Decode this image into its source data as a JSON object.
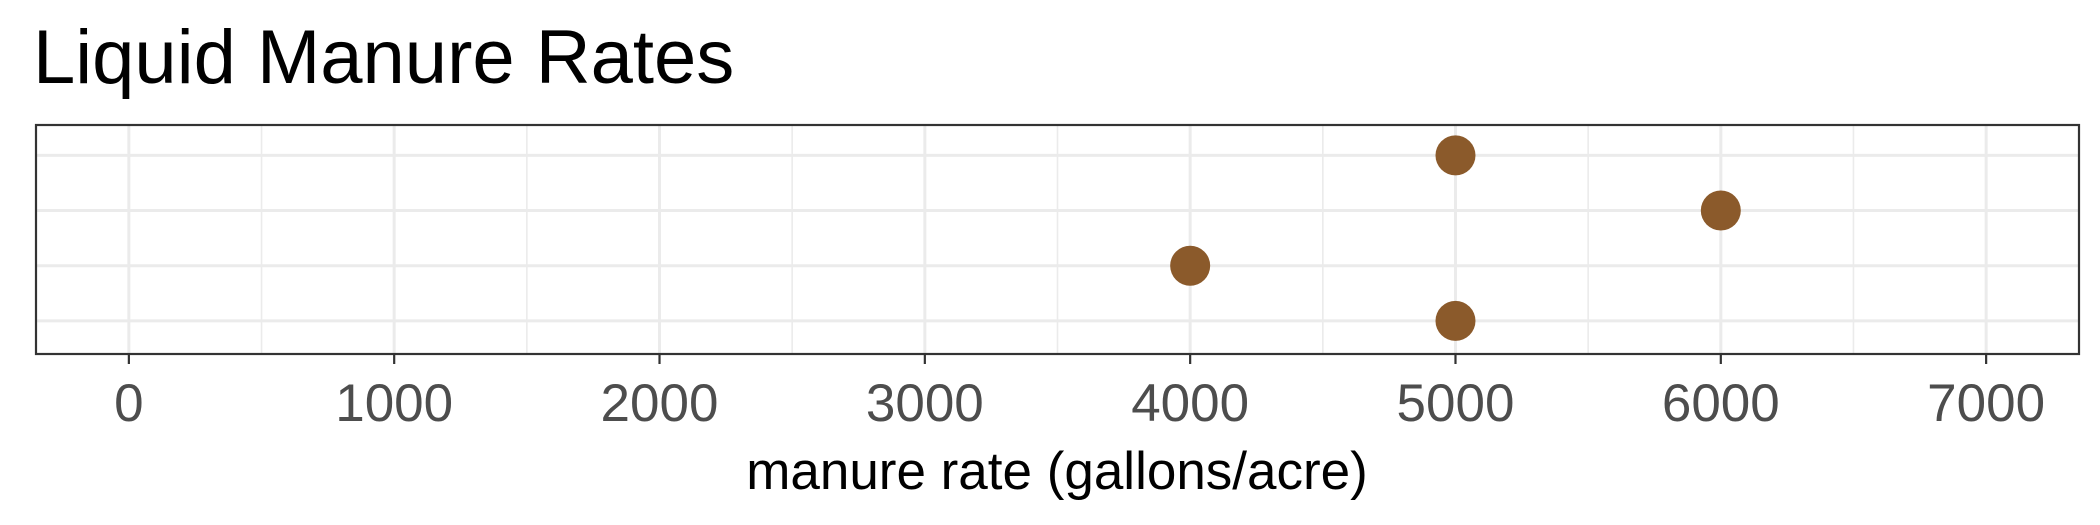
{
  "chart_data": {
    "type": "scatter",
    "title": "Liquid Manure Rates",
    "xlabel": "manure rate (gallons/acre)",
    "ylabel": "",
    "xlim": [
      -350,
      7350
    ],
    "ylim": [
      0.4,
      4.55
    ],
    "xticks": [
      0,
      1000,
      2000,
      3000,
      4000,
      5000,
      6000,
      7000
    ],
    "xtick_labels": [
      "0",
      "1000",
      "2000",
      "3000",
      "4000",
      "5000",
      "6000",
      "7000"
    ],
    "xminor": [
      500,
      1500,
      2500,
      3500,
      4500,
      5500,
      6500
    ],
    "y_gridlines": [
      1,
      2,
      3,
      4
    ],
    "grid": true,
    "legend": "none",
    "point_color": "#8B5A2B",
    "points": [
      {
        "x": 5000,
        "y": 4
      },
      {
        "x": 6000,
        "y": 3
      },
      {
        "x": 4000,
        "y": 2
      },
      {
        "x": 5000,
        "y": 1
      }
    ]
  }
}
